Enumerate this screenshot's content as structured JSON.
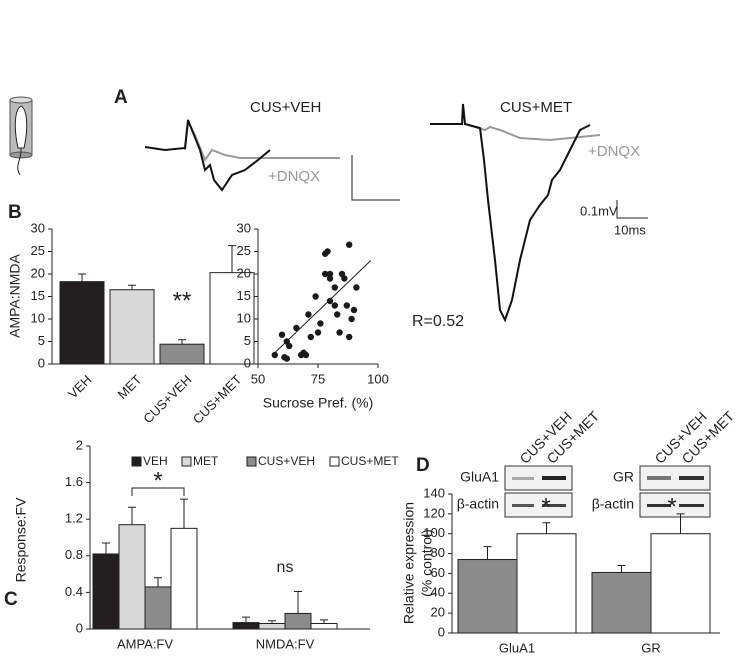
{
  "panel_a": {
    "label": "A",
    "traces": [
      {
        "title": "CUS+VEH",
        "drug": "+DNQX"
      },
      {
        "title": "CUS+MET",
        "drug": "+DNQX"
      }
    ],
    "scale": {
      "voltage": "0.1mV",
      "time": "10ms"
    }
  },
  "chart_data": [
    {
      "type": "bar",
      "panel": "B",
      "y_label": "AMPA:NMDA",
      "categories": [
        "VEH",
        "MET",
        "CUS+VEH",
        "CUS+MET"
      ],
      "values": [
        18.3,
        16.5,
        4.4,
        20.3
      ],
      "errors": [
        1.7,
        1.0,
        1.0,
        6.0
      ],
      "colors": [
        "#231f20",
        "#d9d9d9",
        "#8c8c8c",
        "#ffffff"
      ],
      "ylim": [
        0,
        30
      ],
      "yticks": [
        0,
        5,
        10,
        15,
        20,
        25,
        30
      ],
      "annotations": [
        "**"
      ]
    },
    {
      "type": "scatter",
      "x_label": "Sucrose Pref. (%)",
      "x": [
        57,
        60,
        61,
        62,
        62,
        63,
        66,
        68,
        69,
        70,
        71,
        72,
        74,
        75,
        76,
        78,
        78,
        79,
        80,
        80,
        80,
        82,
        82,
        83,
        84,
        85,
        86,
        87,
        88,
        88,
        89,
        90,
        91
      ],
      "values": [
        2,
        6.5,
        1.5,
        5,
        1.2,
        4,
        8,
        2,
        2.5,
        2,
        11,
        6,
        15,
        7,
        9,
        20,
        24.5,
        25,
        19,
        20,
        14,
        17,
        13,
        11,
        7,
        20,
        19,
        13,
        26.5,
        6,
        10,
        12,
        17
      ],
      "color": "#1a1a1a",
      "fit_line": {
        "x": [
          57,
          97
        ],
        "values": [
          2.5,
          23
        ]
      },
      "xlim": [
        50,
        100
      ],
      "xticks": [
        50,
        75,
        100
      ],
      "ylim": [
        0,
        30
      ],
      "yticks": [
        0,
        5,
        10,
        15,
        20,
        25,
        30
      ],
      "annotations": [
        "R=0.52"
      ]
    },
    {
      "type": "grouped_bar",
      "panel": "C",
      "y_label": "Response:FV",
      "categories": [
        "AMPA:FV",
        "NMDA:FV"
      ],
      "series": [
        {
          "name": "VEH",
          "color": "#231f20",
          "values": [
            0.82,
            0.07
          ],
          "errors": [
            0.12,
            0.06
          ]
        },
        {
          "name": "MET",
          "color": "#d9d9d9",
          "values": [
            1.14,
            0.06
          ],
          "errors": [
            0.19,
            0.03
          ]
        },
        {
          "name": "CUS+VEH",
          "color": "#8c8c8c",
          "values": [
            0.46,
            0.17
          ],
          "errors": [
            0.1,
            0.24
          ]
        },
        {
          "name": "CUS+MET",
          "color": "#ffffff",
          "values": [
            1.1,
            0.06
          ],
          "errors": [
            0.32,
            0.04
          ]
        }
      ],
      "ylim": [
        0,
        2
      ],
      "yticks": [
        0,
        0.4,
        0.8,
        1.2,
        1.6,
        2
      ],
      "legend": "top",
      "annotations": [
        "*",
        "ns"
      ]
    },
    {
      "type": "grouped_bar",
      "panel": "D",
      "y_label": [
        "Relative expression",
        "(% control)"
      ],
      "categories": [
        "GluA1",
        "GR"
      ],
      "series": [
        {
          "name": "CUS+VEH",
          "color": "#8c8c8c",
          "values": [
            74,
            61
          ],
          "errors": [
            13,
            7
          ]
        },
        {
          "name": "CUS+MET",
          "color": "#ffffff",
          "values": [
            100,
            100
          ],
          "errors": [
            11,
            20
          ]
        }
      ],
      "ylim": [
        0,
        140
      ],
      "yticks": [
        0,
        20,
        40,
        60,
        80,
        100,
        120,
        140
      ],
      "blots": [
        {
          "target": "GluA1",
          "control": "β-actin"
        },
        {
          "target": "GR",
          "control": "β-actin"
        }
      ],
      "annotations": [
        "*",
        "*"
      ]
    }
  ]
}
